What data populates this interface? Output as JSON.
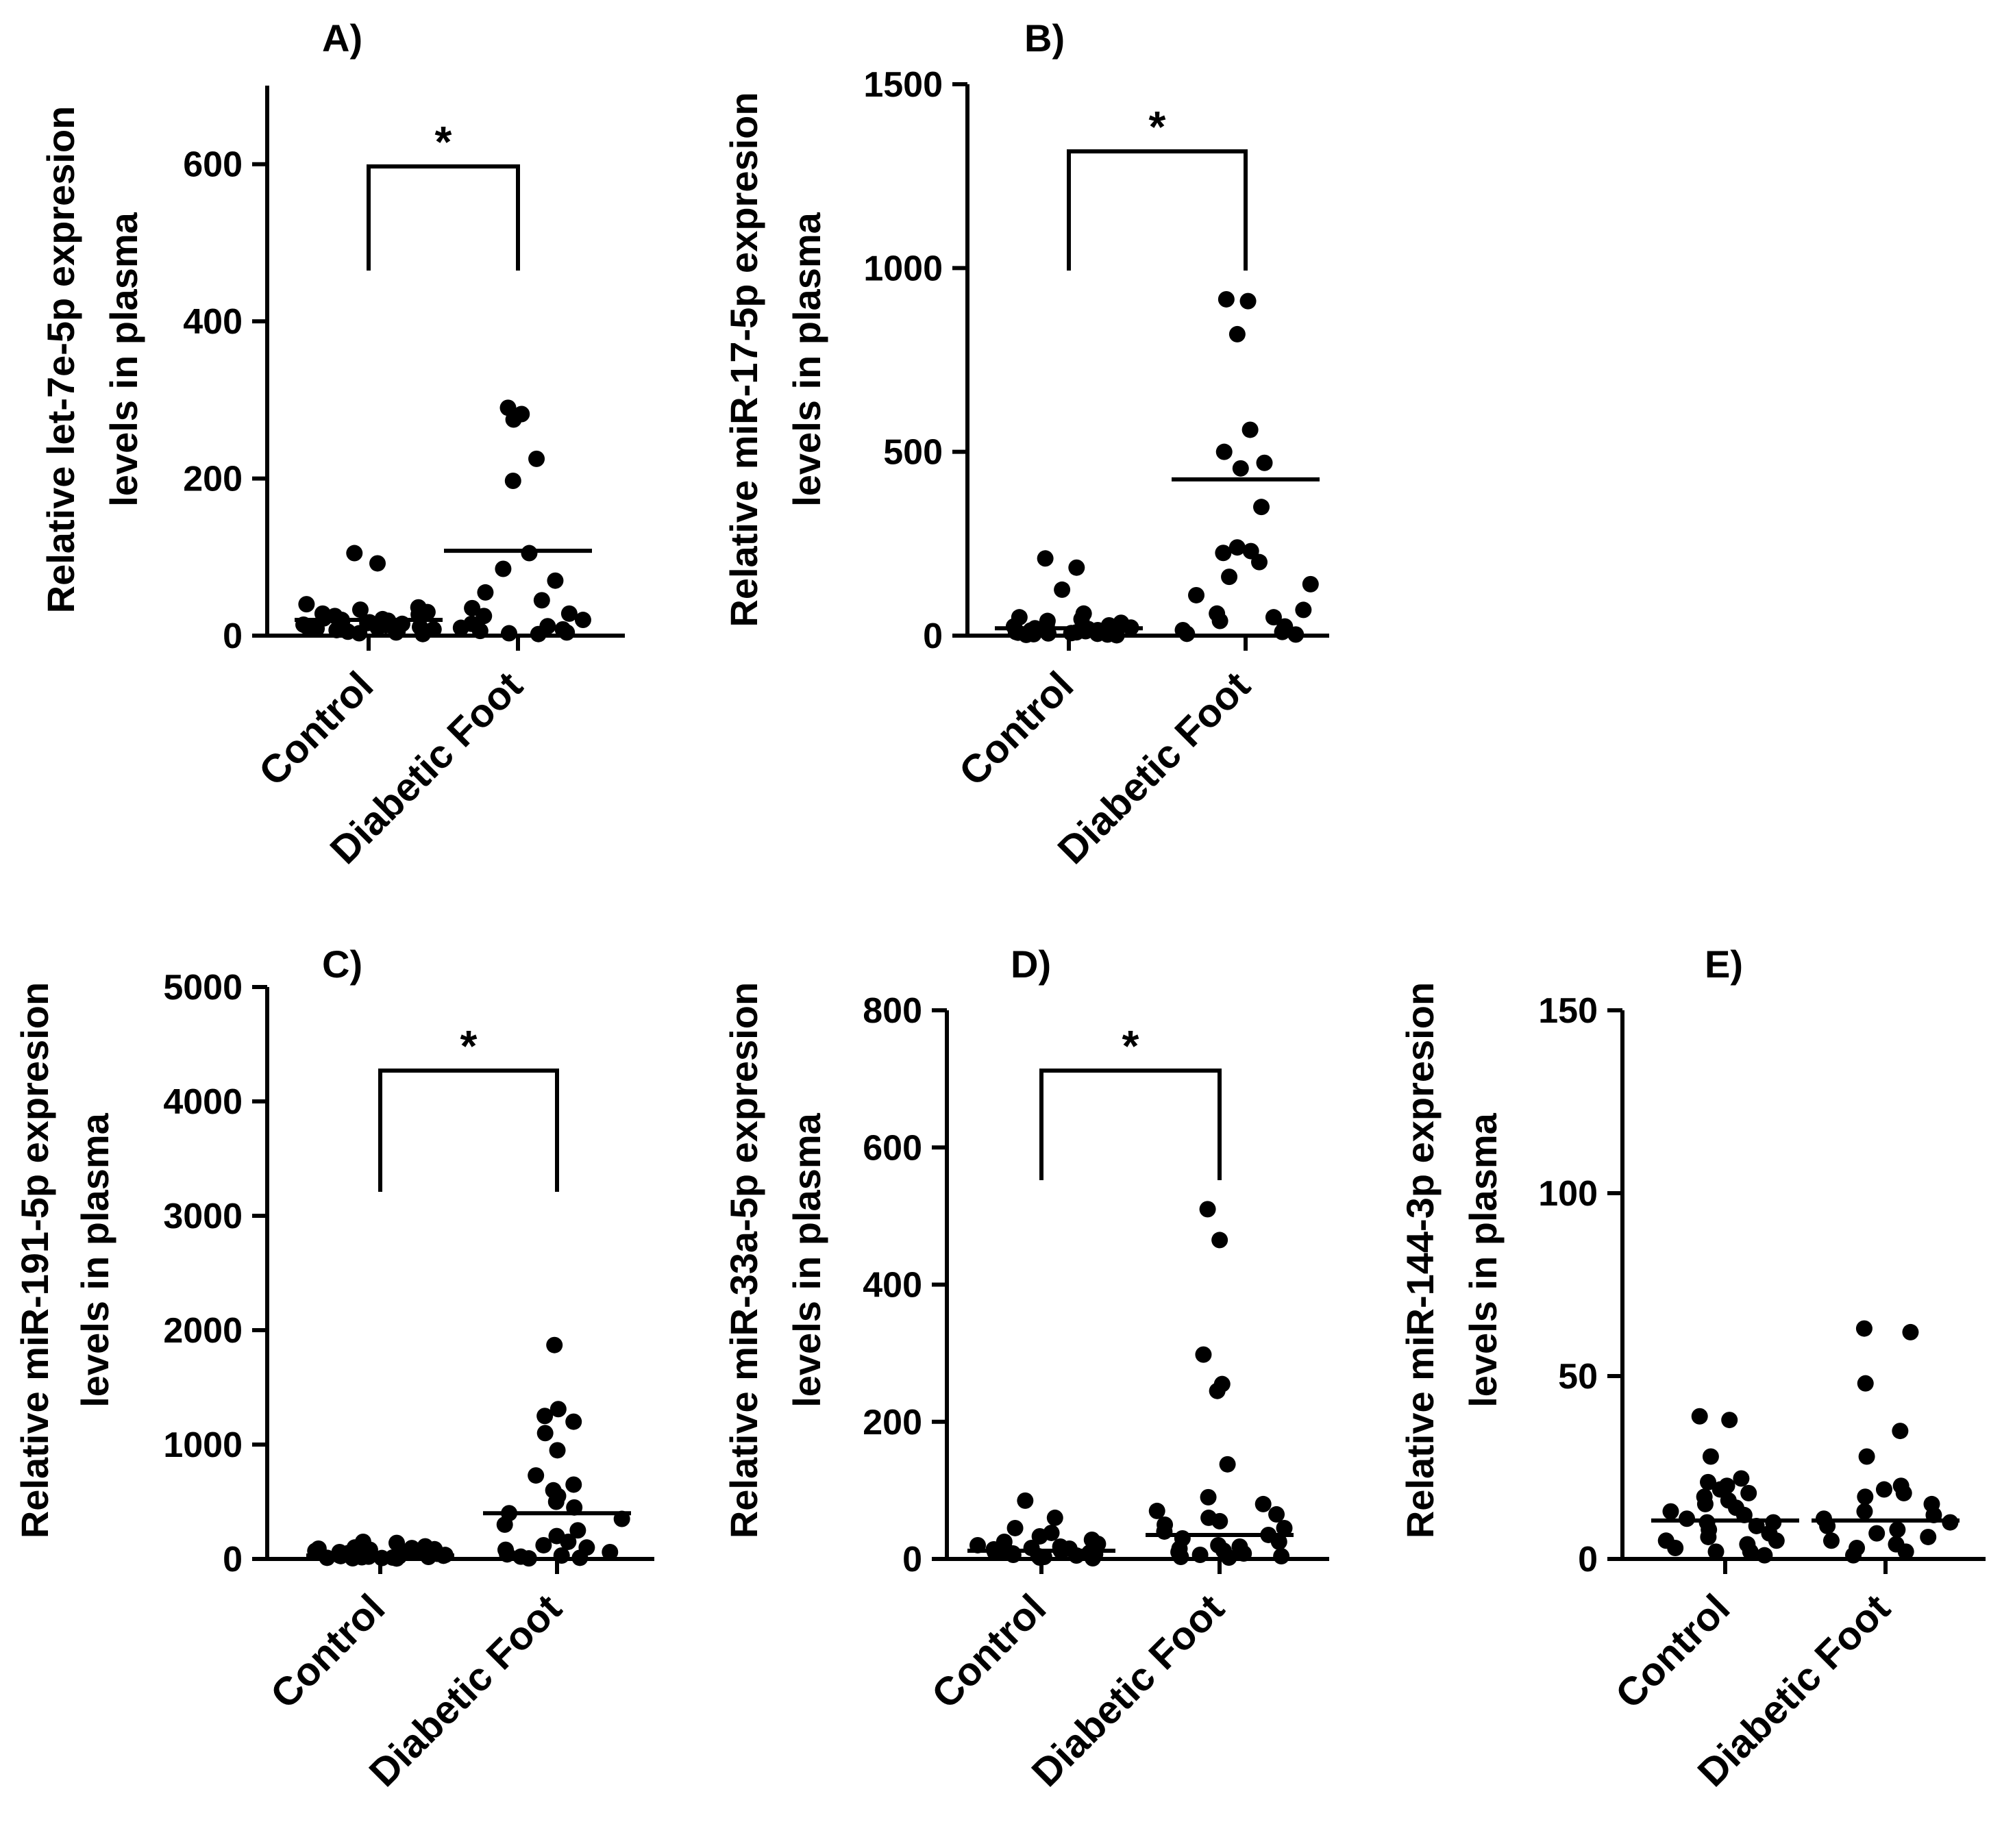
{
  "chart_data": [
    {
      "type": "scatter",
      "panel": "A)",
      "ylabel": [
        "Relative let-7e-5p expresion",
        "levels in plasma"
      ],
      "categories": [
        "Control",
        "Diabetic Foot"
      ],
      "ylim": [
        0,
        700
      ],
      "yticks": [
        0,
        200,
        400,
        600
      ],
      "significance": "*",
      "series": [
        {
          "name": "Control",
          "mean": 20,
          "values": [
            105,
            92,
            40,
            36,
            33,
            30,
            28,
            27,
            25,
            24,
            22,
            21,
            20,
            19,
            18,
            17,
            16,
            15,
            14,
            13,
            12,
            11,
            10,
            10,
            9,
            8,
            7,
            6,
            5,
            4,
            3,
            2
          ]
        },
        {
          "name": "Diabetic Foot",
          "mean": 108,
          "values": [
            290,
            282,
            275,
            225,
            197,
            105,
            85,
            70,
            55,
            45,
            35,
            28,
            25,
            20,
            15,
            12,
            10,
            8,
            6,
            4,
            3,
            2
          ]
        }
      ]
    },
    {
      "type": "scatter",
      "panel": "B)",
      "ylabel": [
        "Relative miR-17-5p expresion",
        "levels in plasma"
      ],
      "categories": [
        "Control",
        "Diabetic Foot"
      ],
      "ylim": [
        0,
        1500
      ],
      "yticks": [
        0,
        500,
        1000,
        1500
      ],
      "significance": "*",
      "series": [
        {
          "name": "Control",
          "mean": 20,
          "values": [
            210,
            185,
            125,
            60,
            50,
            45,
            40,
            35,
            30,
            28,
            25,
            22,
            20,
            18,
            16,
            15,
            14,
            12,
            10,
            9,
            8,
            7,
            6,
            5,
            4,
            3,
            2,
            1
          ]
        },
        {
          "name": "Diabetic Foot",
          "mean": 425,
          "values": [
            915,
            910,
            820,
            560,
            500,
            470,
            455,
            350,
            240,
            230,
            225,
            200,
            160,
            140,
            110,
            70,
            60,
            50,
            40,
            25,
            15,
            10,
            5,
            3
          ]
        }
      ]
    },
    {
      "type": "scatter",
      "panel": "C)",
      "ylabel": [
        "Relative miR-191-5p expresion",
        "levels in plasma"
      ],
      "categories": [
        "Control",
        "Diabetic Foot"
      ],
      "ylim": [
        0,
        5000
      ],
      "yticks": [
        0,
        1000,
        2000,
        3000,
        4000,
        5000
      ],
      "significance": "*",
      "series": [
        {
          "name": "Control",
          "mean": 30,
          "values": [
            150,
            140,
            120,
            110,
            100,
            95,
            90,
            85,
            80,
            75,
            70,
            65,
            60,
            55,
            50,
            45,
            40,
            35,
            30,
            28,
            25,
            22,
            20,
            18,
            15,
            12,
            10,
            8,
            6,
            4
          ]
        },
        {
          "name": "Diabetic Foot",
          "mean": 400,
          "values": [
            1870,
            1310,
            1250,
            1200,
            1100,
            950,
            730,
            650,
            600,
            550,
            500,
            450,
            400,
            350,
            300,
            250,
            200,
            150,
            120,
            100,
            80,
            60,
            40,
            30,
            20,
            10,
            5
          ]
        }
      ]
    },
    {
      "type": "scatter",
      "panel": "D)",
      "ylabel": [
        "Relative miR-33a-5p expresion",
        "levels in plasma"
      ],
      "categories": [
        "Control",
        "Diabetic Foot"
      ],
      "ylim": [
        0,
        800
      ],
      "yticks": [
        0,
        200,
        400,
        600,
        800
      ],
      "significance": "*",
      "series": [
        {
          "name": "Control",
          "mean": 12,
          "values": [
            85,
            60,
            45,
            38,
            33,
            28,
            25,
            22,
            20,
            18,
            16,
            15,
            14,
            13,
            12,
            11,
            10,
            9,
            8,
            7,
            6,
            5,
            4,
            3,
            2,
            1
          ]
        },
        {
          "name": "Diabetic Foot",
          "mean": 35,
          "values": [
            510,
            465,
            298,
            255,
            245,
            138,
            90,
            80,
            70,
            65,
            60,
            55,
            50,
            45,
            40,
            35,
            30,
            25,
            20,
            18,
            15,
            12,
            10,
            8,
            6,
            4,
            3,
            2
          ]
        }
      ]
    },
    {
      "type": "scatter",
      "panel": "E)",
      "ylabel": [
        "Relative miR-144-3p expresion",
        "levels in plasma"
      ],
      "categories": [
        "Control",
        "Diabetic Foot"
      ],
      "ylim": [
        0,
        150
      ],
      "yticks": [
        0,
        50,
        100,
        150
      ],
      "significance": "",
      "series": [
        {
          "name": "Control",
          "mean": 10.5,
          "values": [
            39,
            38,
            28,
            22,
            21,
            20,
            19,
            18,
            17,
            16,
            15,
            14,
            13,
            12,
            11,
            10,
            10,
            9,
            8,
            7,
            6,
            5,
            5,
            4,
            3,
            2,
            2,
            1
          ]
        },
        {
          "name": "Diabetic Foot",
          "mean": 10.5,
          "values": [
            63,
            62,
            48,
            35,
            28,
            20,
            19,
            18,
            17,
            15,
            13,
            12,
            11,
            10,
            9,
            8,
            7,
            6,
            5,
            4,
            3,
            2,
            1
          ]
        }
      ]
    }
  ]
}
